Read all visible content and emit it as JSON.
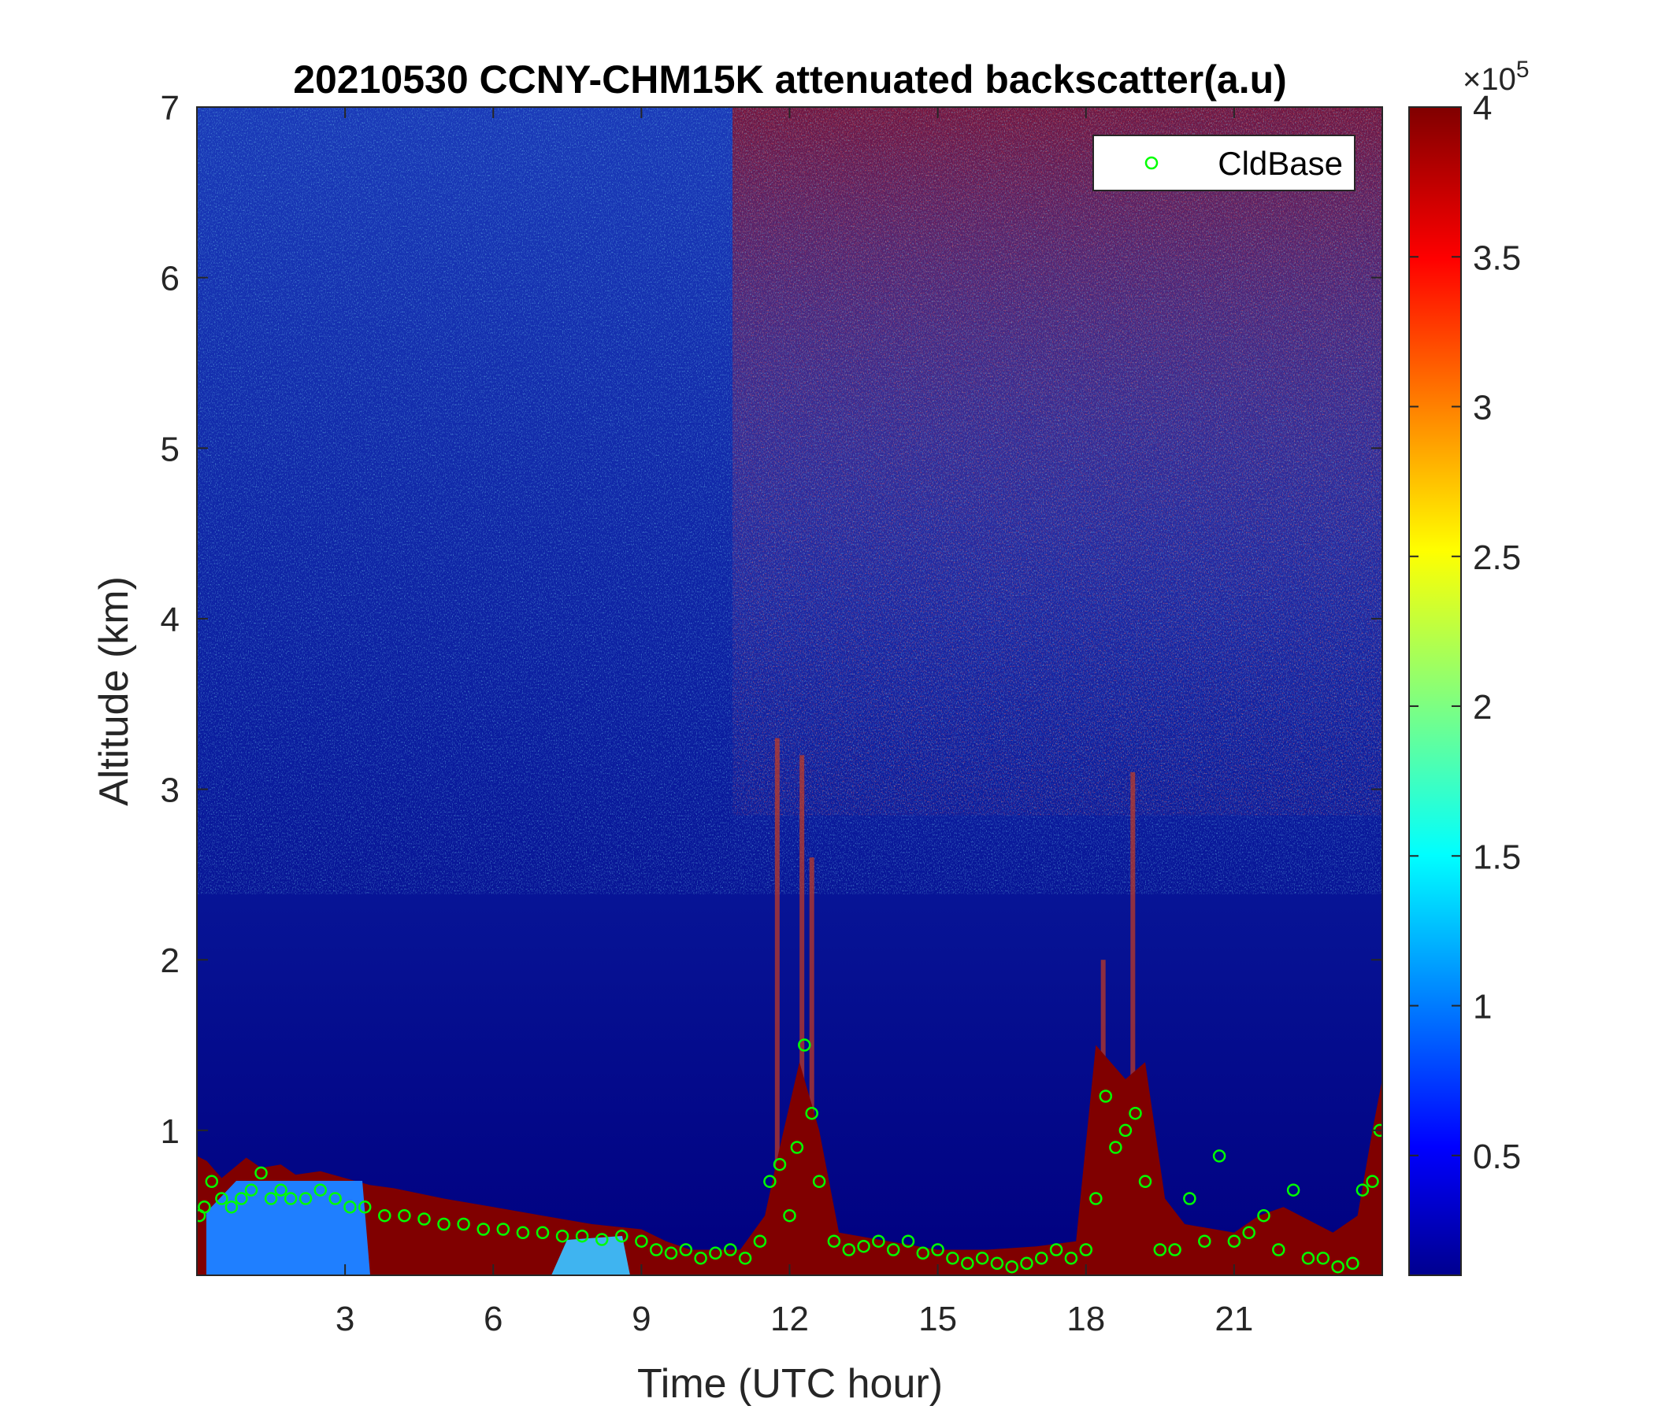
{
  "chart_data": {
    "type": "heatmap",
    "title": "20210530 CCNY-CHM15K attenuated backscatter(a.u)",
    "xlabel": "Time (UTC hour)",
    "ylabel": "Altitude (km)",
    "xlim": [
      0,
      24
    ],
    "ylim": [
      0.15,
      7
    ],
    "xticks": [
      3,
      6,
      9,
      12,
      15,
      18,
      21
    ],
    "yticks": [
      1,
      2,
      3,
      4,
      5,
      6,
      7
    ],
    "colormap": "jet",
    "colorbar": {
      "clim": [
        0.1,
        4
      ],
      "ticks": [
        0.5,
        1,
        1.5,
        2,
        2.5,
        3,
        3.5,
        4
      ],
      "tick_labels": [
        "0.5",
        "1",
        "1.5",
        "2",
        "2.5",
        "3",
        "3.5",
        "4"
      ],
      "exponent_base": "×10",
      "exponent": "5"
    },
    "legend": {
      "position": "top-right",
      "entries": [
        {
          "name": "CldBase",
          "marker": "circle",
          "color": "#00ff00"
        }
      ]
    },
    "grid": false,
    "boundary_layer_top_km": {
      "x": [
        0,
        0.2,
        0.5,
        1.0,
        1.3,
        1.7,
        2.0,
        2.5,
        3.0,
        3.5,
        4.0,
        5.0,
        6.0,
        7.0,
        8.0,
        9.0,
        9.5,
        10.0,
        11.0,
        11.5,
        11.8,
        12.2,
        12.6,
        13.0,
        14.0,
        15.0,
        16.0,
        17.0,
        17.8,
        18.2,
        18.8,
        19.2,
        19.6,
        20.0,
        21.0,
        21.5,
        22.0,
        23.0,
        23.5,
        23.8,
        24.0
      ],
      "y": [
        0.85,
        0.82,
        0.72,
        0.84,
        0.78,
        0.8,
        0.74,
        0.76,
        0.72,
        0.68,
        0.66,
        0.6,
        0.55,
        0.5,
        0.45,
        0.42,
        0.35,
        0.3,
        0.3,
        0.5,
        0.9,
        1.4,
        1.0,
        0.4,
        0.35,
        0.3,
        0.3,
        0.32,
        0.35,
        1.5,
        1.3,
        1.4,
        0.6,
        0.45,
        0.4,
        0.5,
        0.55,
        0.4,
        0.5,
        1.0,
        1.3
      ]
    },
    "enhanced_columns": [
      {
        "x": 11.75,
        "top_km": 3.3
      },
      {
        "x": 12.25,
        "top_km": 3.2
      },
      {
        "x": 12.45,
        "top_km": 2.6
      },
      {
        "x": 18.35,
        "top_km": 2.0
      },
      {
        "x": 18.95,
        "top_km": 3.1
      }
    ],
    "series": [
      {
        "name": "CldBase",
        "type": "scatter",
        "x": [
          0.05,
          0.15,
          0.3,
          0.5,
          0.7,
          0.9,
          1.1,
          1.3,
          1.5,
          1.7,
          1.9,
          2.2,
          2.5,
          2.8,
          3.1,
          3.4,
          3.8,
          4.2,
          4.6,
          5.0,
          5.4,
          5.8,
          6.2,
          6.6,
          7.0,
          7.4,
          7.8,
          8.2,
          8.6,
          9.0,
          9.3,
          9.6,
          9.9,
          10.2,
          10.5,
          10.8,
          11.1,
          11.4,
          11.6,
          11.8,
          12.0,
          12.15,
          12.3,
          12.45,
          12.6,
          12.9,
          13.2,
          13.5,
          13.8,
          14.1,
          14.4,
          14.7,
          15.0,
          15.3,
          15.6,
          15.9,
          16.2,
          16.5,
          16.8,
          17.1,
          17.4,
          17.7,
          18.0,
          18.2,
          18.4,
          18.6,
          18.8,
          19.0,
          19.2,
          19.5,
          19.8,
          20.1,
          20.4,
          20.7,
          21.0,
          21.3,
          21.6,
          21.9,
          22.2,
          22.5,
          22.8,
          23.1,
          23.4,
          23.6,
          23.8,
          23.95
        ],
        "y": [
          0.5,
          0.55,
          0.7,
          0.6,
          0.55,
          0.6,
          0.65,
          0.75,
          0.6,
          0.65,
          0.6,
          0.6,
          0.65,
          0.6,
          0.55,
          0.55,
          0.5,
          0.5,
          0.48,
          0.45,
          0.45,
          0.42,
          0.42,
          0.4,
          0.4,
          0.38,
          0.38,
          0.36,
          0.38,
          0.35,
          0.3,
          0.28,
          0.3,
          0.25,
          0.28,
          0.3,
          0.25,
          0.35,
          0.7,
          0.8,
          0.5,
          0.9,
          1.5,
          1.1,
          0.7,
          0.35,
          0.3,
          0.32,
          0.35,
          0.3,
          0.35,
          0.28,
          0.3,
          0.25,
          0.22,
          0.25,
          0.22,
          0.2,
          0.22,
          0.25,
          0.3,
          0.25,
          0.3,
          0.6,
          1.2,
          0.9,
          1.0,
          1.1,
          0.7,
          0.3,
          0.3,
          0.6,
          0.35,
          0.85,
          0.35,
          0.4,
          0.5,
          0.3,
          0.65,
          0.25,
          0.25,
          0.2,
          0.22,
          0.65,
          0.7,
          1.0
        ]
      }
    ]
  }
}
